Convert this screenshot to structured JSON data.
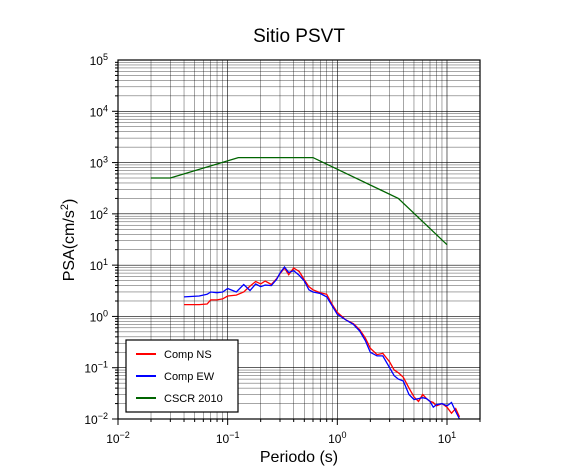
{
  "chart_data": {
    "type": "line",
    "title": "Sitio PSVT",
    "xlabel": "Periodo (s)",
    "ylabel": "PSA(cm/s²)",
    "xscale": "log",
    "yscale": "log",
    "xlim": [
      0.01,
      20
    ],
    "ylim": [
      0.01,
      100000
    ],
    "grid": true,
    "legend_position": "bottom-left",
    "x_ticks": [
      {
        "value": 0.01,
        "base": "10",
        "exp": "−2"
      },
      {
        "value": 0.1,
        "base": "10",
        "exp": "−1"
      },
      {
        "value": 1,
        "base": "10",
        "exp": "0"
      },
      {
        "value": 10,
        "base": "10",
        "exp": "1"
      }
    ],
    "y_ticks": [
      {
        "value": 0.01,
        "base": "10",
        "exp": "−2"
      },
      {
        "value": 0.1,
        "base": "10",
        "exp": "−1"
      },
      {
        "value": 1,
        "base": "10",
        "exp": "0"
      },
      {
        "value": 10,
        "base": "10",
        "exp": "1"
      },
      {
        "value": 100,
        "base": "10",
        "exp": "2"
      },
      {
        "value": 1000,
        "base": "10",
        "exp": "3"
      },
      {
        "value": 10000,
        "base": "10",
        "exp": "4"
      },
      {
        "value": 100000,
        "base": "10",
        "exp": "5"
      }
    ],
    "series": [
      {
        "name": "Comp NS",
        "color": "#ff0000",
        "x": [
          0.04,
          0.055,
          0.065,
          0.07,
          0.08,
          0.09,
          0.1,
          0.12,
          0.14,
          0.16,
          0.18,
          0.2,
          0.22,
          0.25,
          0.28,
          0.3,
          0.33,
          0.36,
          0.4,
          0.45,
          0.5,
          0.55,
          0.6,
          0.7,
          0.8,
          0.9,
          1.0,
          1.2,
          1.4,
          1.6,
          1.8,
          2.0,
          2.3,
          2.6,
          3.0,
          3.3,
          3.6,
          4.0,
          4.5,
          5.0,
          5.5,
          6.0,
          6.5,
          7.0,
          7.5,
          8.0,
          9.0,
          10.0,
          11.0,
          12.0,
          13.0
        ],
        "y": [
          1.7,
          1.7,
          1.75,
          2.1,
          2.1,
          2.2,
          2.5,
          2.6,
          3.0,
          3.9,
          4.8,
          4.3,
          4.9,
          4.2,
          5.5,
          6.8,
          8.8,
          6.5,
          8.8,
          7.5,
          5.2,
          3.8,
          3.3,
          2.9,
          2.7,
          1.7,
          1.2,
          0.85,
          0.72,
          0.55,
          0.38,
          0.24,
          0.18,
          0.19,
          0.13,
          0.09,
          0.08,
          0.065,
          0.04,
          0.027,
          0.022,
          0.03,
          0.025,
          0.022,
          0.021,
          0.018,
          0.02,
          0.017,
          0.013,
          0.016,
          0.011
        ]
      },
      {
        "name": "Comp EW",
        "color": "#0000ff",
        "x": [
          0.04,
          0.055,
          0.065,
          0.07,
          0.08,
          0.09,
          0.1,
          0.12,
          0.14,
          0.16,
          0.18,
          0.2,
          0.22,
          0.25,
          0.28,
          0.3,
          0.33,
          0.36,
          0.4,
          0.45,
          0.5,
          0.55,
          0.6,
          0.7,
          0.8,
          0.9,
          1.0,
          1.2,
          1.4,
          1.6,
          1.8,
          2.0,
          2.3,
          2.6,
          3.0,
          3.3,
          3.6,
          4.0,
          4.5,
          5.0,
          5.5,
          6.0,
          6.5,
          7.0,
          7.5,
          8.0,
          9.0,
          10.0,
          11.0,
          12.0,
          13.0
        ],
        "y": [
          2.4,
          2.5,
          2.7,
          3.0,
          2.9,
          3.0,
          3.5,
          3.0,
          4.2,
          3.2,
          4.3,
          3.8,
          4.1,
          4.0,
          5.3,
          7.0,
          9.2,
          7.2,
          7.8,
          6.3,
          4.9,
          3.3,
          3.0,
          2.8,
          2.4,
          1.6,
          1.1,
          0.85,
          0.7,
          0.52,
          0.34,
          0.2,
          0.17,
          0.17,
          0.1,
          0.07,
          0.06,
          0.055,
          0.03,
          0.024,
          0.025,
          0.026,
          0.025,
          0.022,
          0.017,
          0.019,
          0.02,
          0.018,
          0.021,
          0.014,
          0.01
        ]
      },
      {
        "name": "CSCR 2010",
        "color": "#006400",
        "x": [
          0.02,
          0.03,
          0.125,
          0.6,
          3.6,
          10.0
        ],
        "y": [
          500,
          500,
          1250,
          1250,
          200,
          25
        ]
      }
    ]
  }
}
